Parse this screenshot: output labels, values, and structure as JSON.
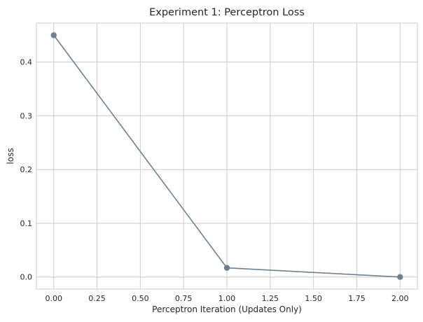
{
  "chart_data": {
    "type": "line",
    "title": "Experiment 1: Perceptron Loss",
    "xlabel": "Perceptron Iteration (Updates Only)",
    "ylabel": "loss",
    "x": [
      0,
      1,
      2
    ],
    "series": [
      {
        "values": [
          0.45,
          0.017,
          0.0
        ],
        "color": "#708090",
        "marker": "circle"
      }
    ],
    "xlim": [
      -0.1,
      2.1
    ],
    "ylim": [
      -0.0225,
      0.4725
    ],
    "xticks": [
      0,
      0.25,
      0.5,
      0.75,
      1,
      1.25,
      1.5,
      1.75,
      2
    ],
    "xtick_labels": [
      "0.00",
      "0.25",
      "0.50",
      "0.75",
      "1.00",
      "1.25",
      "1.50",
      "1.75",
      "2.00"
    ],
    "yticks": [
      0,
      0.1,
      0.2,
      0.3,
      0.4
    ],
    "ytick_labels": [
      "0.0",
      "0.1",
      "0.2",
      "0.3",
      "0.4"
    ],
    "grid": true,
    "legend": false
  }
}
